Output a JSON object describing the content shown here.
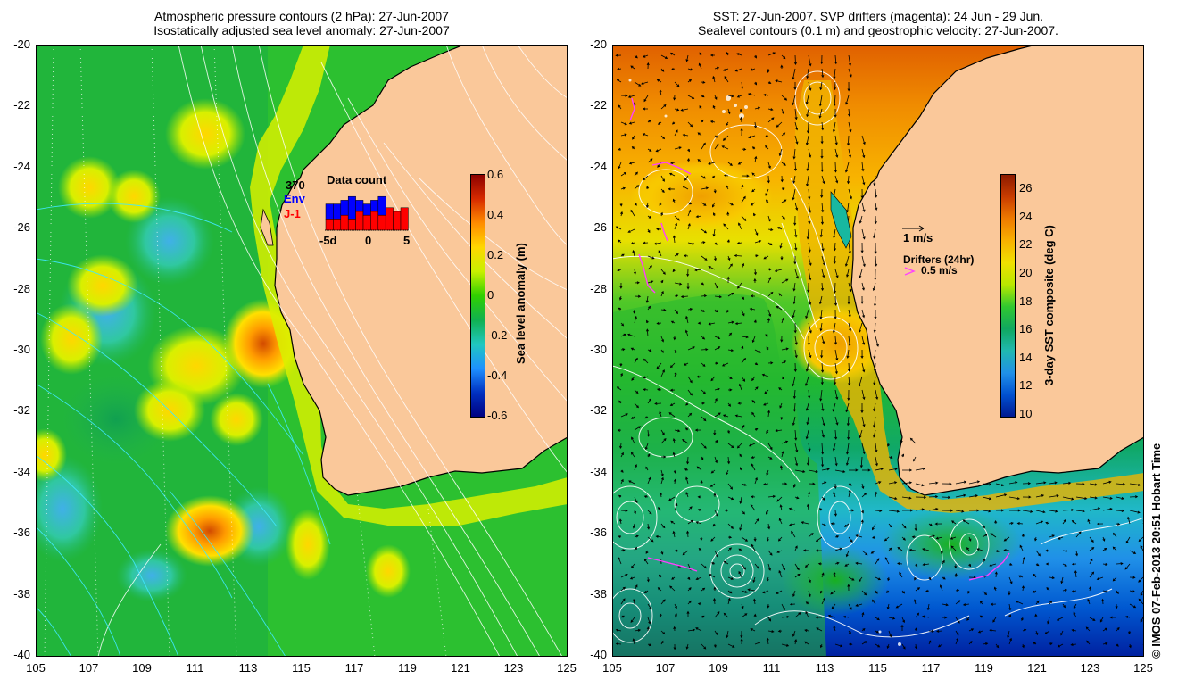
{
  "left_panel": {
    "title_line1": "Atmospheric pressure contours (2 hPa): 27-Jun-2007",
    "title_line2": "Isostatically adjusted sea level anomaly: 27-Jun-2007",
    "colorbar": {
      "label": "Sea level anomaly (m)",
      "ticks": [
        "0.6",
        "0.4",
        "0.2",
        "0",
        "-0.2",
        "-0.4",
        "-0.6"
      ],
      "colors": [
        "#8b0000",
        "#d62a00",
        "#ff8c00",
        "#ffd700",
        "#c8f000",
        "#30d000",
        "#10b050",
        "#20c8c0",
        "#1e90ff",
        "#0030c0",
        "#000080"
      ]
    },
    "data_count": {
      "title": "Data count",
      "total": "370",
      "mission_1": "Env",
      "mission_1_color": "#0000ff",
      "mission_2": "J-1",
      "mission_2_color": "#ff0000",
      "axis_ticks": [
        "-5d",
        "0",
        "5"
      ],
      "env_counts": [
        7,
        7,
        8,
        9,
        8,
        7,
        8,
        9,
        6,
        5,
        6
      ],
      "j1_counts": [
        3,
        3,
        4,
        3,
        5,
        4,
        5,
        4,
        6,
        5,
        6
      ]
    }
  },
  "right_panel": {
    "title_line1": "SST: 27-Jun-2007. SVP drifters (magenta): 24 Jun - 29 Jun.",
    "title_line2": "Sealevel contours (0.1 m) and geostrophic velocity: 27-Jun-2007.",
    "colorbar": {
      "label": "3-day SST composite (deg C)",
      "ticks": [
        "26",
        "24",
        "22",
        "20",
        "18",
        "16",
        "14",
        "12",
        "10"
      ],
      "colors": [
        "#8b1a00",
        "#c83c00",
        "#ee7a00",
        "#f8b000",
        "#f0e000",
        "#b8e800",
        "#30c830",
        "#10a860",
        "#20b8b0",
        "#2090e8",
        "#0050d0",
        "#001890"
      ]
    },
    "legend": {
      "velocity_label": "1 m/s",
      "drifters_label": "Drifters (24hr)",
      "drifter_speed": "0.5 m/s",
      "drifter_color": "#ff40ff"
    }
  },
  "axes": {
    "x_ticks": [
      "105",
      "107",
      "109",
      "111",
      "113",
      "115",
      "117",
      "119",
      "121",
      "123",
      "125"
    ],
    "y_ticks": [
      "-20",
      "-22",
      "-24",
      "-26",
      "-28",
      "-30",
      "-32",
      "-34",
      "-36",
      "-38",
      "-40"
    ],
    "lon_range": [
      105,
      125
    ],
    "lat_range": [
      -40,
      -20
    ]
  },
  "land_color": "#fac89a",
  "credit": "© IMOS 07-Feb-2013 20:51 Hobart Time"
}
